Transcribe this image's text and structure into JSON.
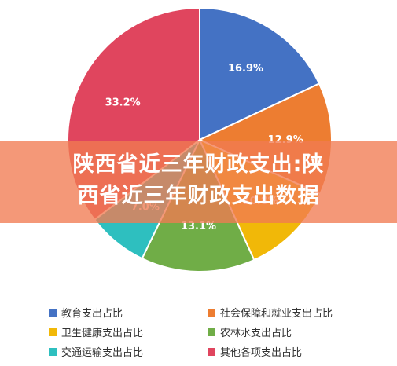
{
  "banner": {
    "line1": "陕西省近三年财政支出:陕",
    "line2": "西省近三年财政支出数据"
  },
  "chart_data": {
    "type": "pie",
    "title": "",
    "labels": [
      "教育支出占比",
      "社会保障和就业支出占比",
      "卫生健康支出占比",
      "农林水支出占比",
      "交通运输支出占比",
      "其他各项支出占比"
    ],
    "values": [
      16.9,
      12.9,
      10.8,
      13.1,
      7.0,
      33.2
    ],
    "data_labels": [
      "16.9%",
      "12.9%",
      "10.8%",
      "13.1%",
      "7.0%",
      "33.2%"
    ],
    "colors": [
      "#4472C4",
      "#ED7D31",
      "#F1B808",
      "#70AD47",
      "#2EBFBF",
      "#E0455E"
    ],
    "legend_position": "bottom"
  }
}
